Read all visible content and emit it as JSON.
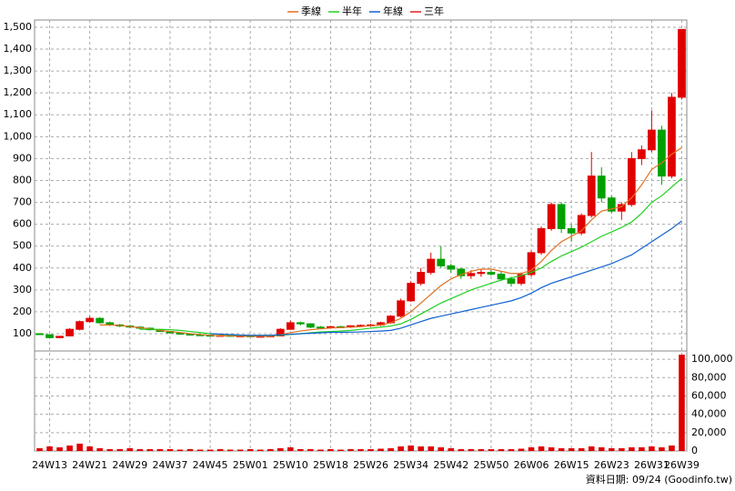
{
  "chart_data": {
    "type": "candlestick",
    "categories": [
      null,
      "24W13",
      null,
      null,
      null,
      "24W21",
      null,
      null,
      null,
      "24W29",
      null,
      null,
      null,
      "24W37",
      null,
      null,
      null,
      "24W45",
      null,
      null,
      null,
      "25W01",
      null,
      null,
      null,
      "25W10",
      null,
      null,
      null,
      "25W18",
      null,
      null,
      null,
      "25W26",
      null,
      null,
      null,
      "25W34",
      null,
      null,
      null,
      "25W42",
      null,
      null,
      null,
      "25W50",
      null,
      null,
      null,
      "26W06",
      null,
      null,
      null,
      "26W15",
      null,
      null,
      null,
      "26W23",
      null,
      null,
      null,
      "26W31",
      null,
      null,
      "26W39"
    ],
    "ohlc": [
      [
        100,
        102,
        95,
        98
      ],
      [
        95,
        97,
        80,
        82
      ],
      [
        82,
        90,
        80,
        88
      ],
      [
        90,
        125,
        88,
        120
      ],
      [
        120,
        160,
        115,
        155
      ],
      [
        155,
        180,
        150,
        170
      ],
      [
        170,
        175,
        145,
        150
      ],
      [
        150,
        155,
        135,
        140
      ],
      [
        140,
        145,
        130,
        135
      ],
      [
        135,
        140,
        125,
        130
      ],
      [
        130,
        135,
        120,
        125
      ],
      [
        125,
        128,
        115,
        118
      ],
      [
        118,
        120,
        108,
        110
      ],
      [
        110,
        112,
        100,
        104
      ],
      [
        104,
        106,
        95,
        98
      ],
      [
        98,
        100,
        92,
        95
      ],
      [
        95,
        98,
        90,
        93
      ],
      [
        93,
        96,
        88,
        90
      ],
      [
        90,
        95,
        87,
        92
      ],
      [
        92,
        94,
        86,
        88
      ],
      [
        88,
        92,
        85,
        90
      ],
      [
        90,
        92,
        84,
        86
      ],
      [
        86,
        90,
        82,
        88
      ],
      [
        88,
        92,
        84,
        90
      ],
      [
        90,
        125,
        88,
        120
      ],
      [
        120,
        160,
        118,
        150
      ],
      [
        150,
        155,
        138,
        145
      ],
      [
        145,
        148,
        125,
        130
      ],
      [
        130,
        135,
        122,
        128
      ],
      [
        128,
        134,
        122,
        132
      ],
      [
        132,
        136,
        125,
        130
      ],
      [
        130,
        138,
        126,
        136
      ],
      [
        136,
        142,
        130,
        138
      ],
      [
        138,
        145,
        132,
        140
      ],
      [
        140,
        155,
        135,
        150
      ],
      [
        150,
        185,
        145,
        180
      ],
      [
        180,
        260,
        175,
        250
      ],
      [
        250,
        340,
        245,
        330
      ],
      [
        330,
        400,
        320,
        380
      ],
      [
        380,
        470,
        370,
        440
      ],
      [
        440,
        500,
        400,
        410
      ],
      [
        410,
        420,
        380,
        395
      ],
      [
        395,
        400,
        350,
        365
      ],
      [
        365,
        390,
        350,
        375
      ],
      [
        375,
        395,
        360,
        380
      ],
      [
        380,
        392,
        365,
        372
      ],
      [
        372,
        385,
        340,
        350
      ],
      [
        350,
        360,
        315,
        330
      ],
      [
        330,
        380,
        320,
        370
      ],
      [
        370,
        480,
        360,
        470
      ],
      [
        470,
        590,
        460,
        580
      ],
      [
        580,
        700,
        570,
        690
      ],
      [
        690,
        700,
        560,
        580
      ],
      [
        580,
        600,
        520,
        560
      ],
      [
        560,
        650,
        550,
        640
      ],
      [
        640,
        930,
        630,
        820
      ],
      [
        820,
        860,
        700,
        720
      ],
      [
        720,
        730,
        650,
        660
      ],
      [
        660,
        700,
        620,
        690
      ],
      [
        690,
        930,
        680,
        900
      ],
      [
        900,
        960,
        870,
        940
      ],
      [
        940,
        1120,
        930,
        1030
      ],
      [
        1030,
        1050,
        780,
        820
      ],
      [
        820,
        1200,
        810,
        1180
      ],
      [
        1180,
        1490,
        1170,
        1490
      ]
    ],
    "up_color": "#e00000",
    "down_color": "#00a000",
    "series": [
      {
        "name": "季線",
        "color": "#e07020",
        "values": [
          null,
          null,
          null,
          null,
          null,
          null,
          140,
          140,
          138,
          132,
          128,
          122,
          115,
          110,
          105,
          100,
          96,
          93,
          90,
          90,
          89,
          88,
          88,
          88,
          95,
          105,
          112,
          118,
          122,
          126,
          128,
          130,
          132,
          136,
          140,
          150,
          170,
          200,
          240,
          280,
          320,
          350,
          370,
          385,
          395,
          395,
          385,
          375,
          375,
          390,
          430,
          480,
          520,
          545,
          570,
          620,
          660,
          670,
          680,
          720,
          780,
          850,
          880,
          920,
          950
        ]
      },
      {
        "name": "半年",
        "color": "#20d020",
        "values": [
          null,
          null,
          null,
          null,
          null,
          null,
          null,
          null,
          null,
          null,
          120,
          120,
          120,
          118,
          115,
          110,
          105,
          100,
          97,
          95,
          93,
          92,
          92,
          92,
          93,
          96,
          100,
          104,
          108,
          110,
          112,
          115,
          120,
          125,
          130,
          135,
          145,
          165,
          190,
          215,
          240,
          260,
          280,
          300,
          315,
          330,
          345,
          355,
          365,
          380,
          400,
          430,
          455,
          475,
          495,
          520,
          545,
          565,
          585,
          610,
          650,
          700,
          730,
          770,
          810
        ]
      },
      {
        "name": "年線",
        "color": "#1060d0",
        "values": [
          null,
          null,
          null,
          null,
          null,
          null,
          null,
          null,
          null,
          null,
          null,
          null,
          null,
          null,
          null,
          null,
          null,
          100,
          98,
          96,
          94,
          92,
          92,
          93,
          95,
          97,
          100,
          102,
          104,
          106,
          106,
          107,
          108,
          110,
          112,
          115,
          125,
          140,
          155,
          170,
          180,
          190,
          200,
          210,
          220,
          230,
          240,
          250,
          265,
          285,
          310,
          330,
          345,
          360,
          375,
          390,
          405,
          420,
          440,
          460,
          490,
          520,
          550,
          580,
          615
        ]
      },
      {
        "name": "三年",
        "color": "#e02020"
      }
    ],
    "ylim": [
      21,
      1533
    ],
    "yticks": [
      100,
      200,
      300,
      400,
      500,
      600,
      700,
      800,
      900,
      {
        "value": 1000,
        "label": "1,000"
      },
      {
        "value": 1100,
        "label": "1,100"
      },
      {
        "value": 1200,
        "label": "1,200"
      },
      {
        "value": 1300,
        "label": "1,300"
      },
      {
        "value": 1400,
        "label": "1,400"
      },
      {
        "value": 1500,
        "label": "1,500"
      }
    ],
    "volume": {
      "color": "#e00000",
      "values": [
        3000,
        5000,
        4000,
        6000,
        8000,
        5000,
        3000,
        2000,
        2000,
        3000,
        2000,
        2000,
        2000,
        2000,
        1500,
        2000,
        1500,
        1500,
        2000,
        1500,
        1500,
        2000,
        1500,
        2000,
        3000,
        4000,
        2000,
        2000,
        1500,
        2000,
        1500,
        2000,
        2000,
        2000,
        2500,
        3000,
        5000,
        6000,
        5000,
        5000,
        4000,
        3000,
        2000,
        2000,
        2000,
        2000,
        2000,
        2000,
        2500,
        4000,
        5000,
        4000,
        3000,
        3000,
        3000,
        5000,
        4000,
        3000,
        3000,
        4000,
        4000,
        5000,
        4000,
        6000,
        105000
      ],
      "ylim": [
        0,
        109000
      ],
      "yticks": [
        0,
        {
          "value": 20000,
          "label": "20,000"
        },
        {
          "value": 40000,
          "label": "40,000"
        },
        {
          "value": 60000,
          "label": "60,000"
        },
        {
          "value": 80000,
          "label": "80,000"
        },
        {
          "value": 100000,
          "label": "100,000"
        }
      ]
    },
    "grid": true,
    "note": "資料日期: 09/24 (Goodinfo.tw)"
  }
}
